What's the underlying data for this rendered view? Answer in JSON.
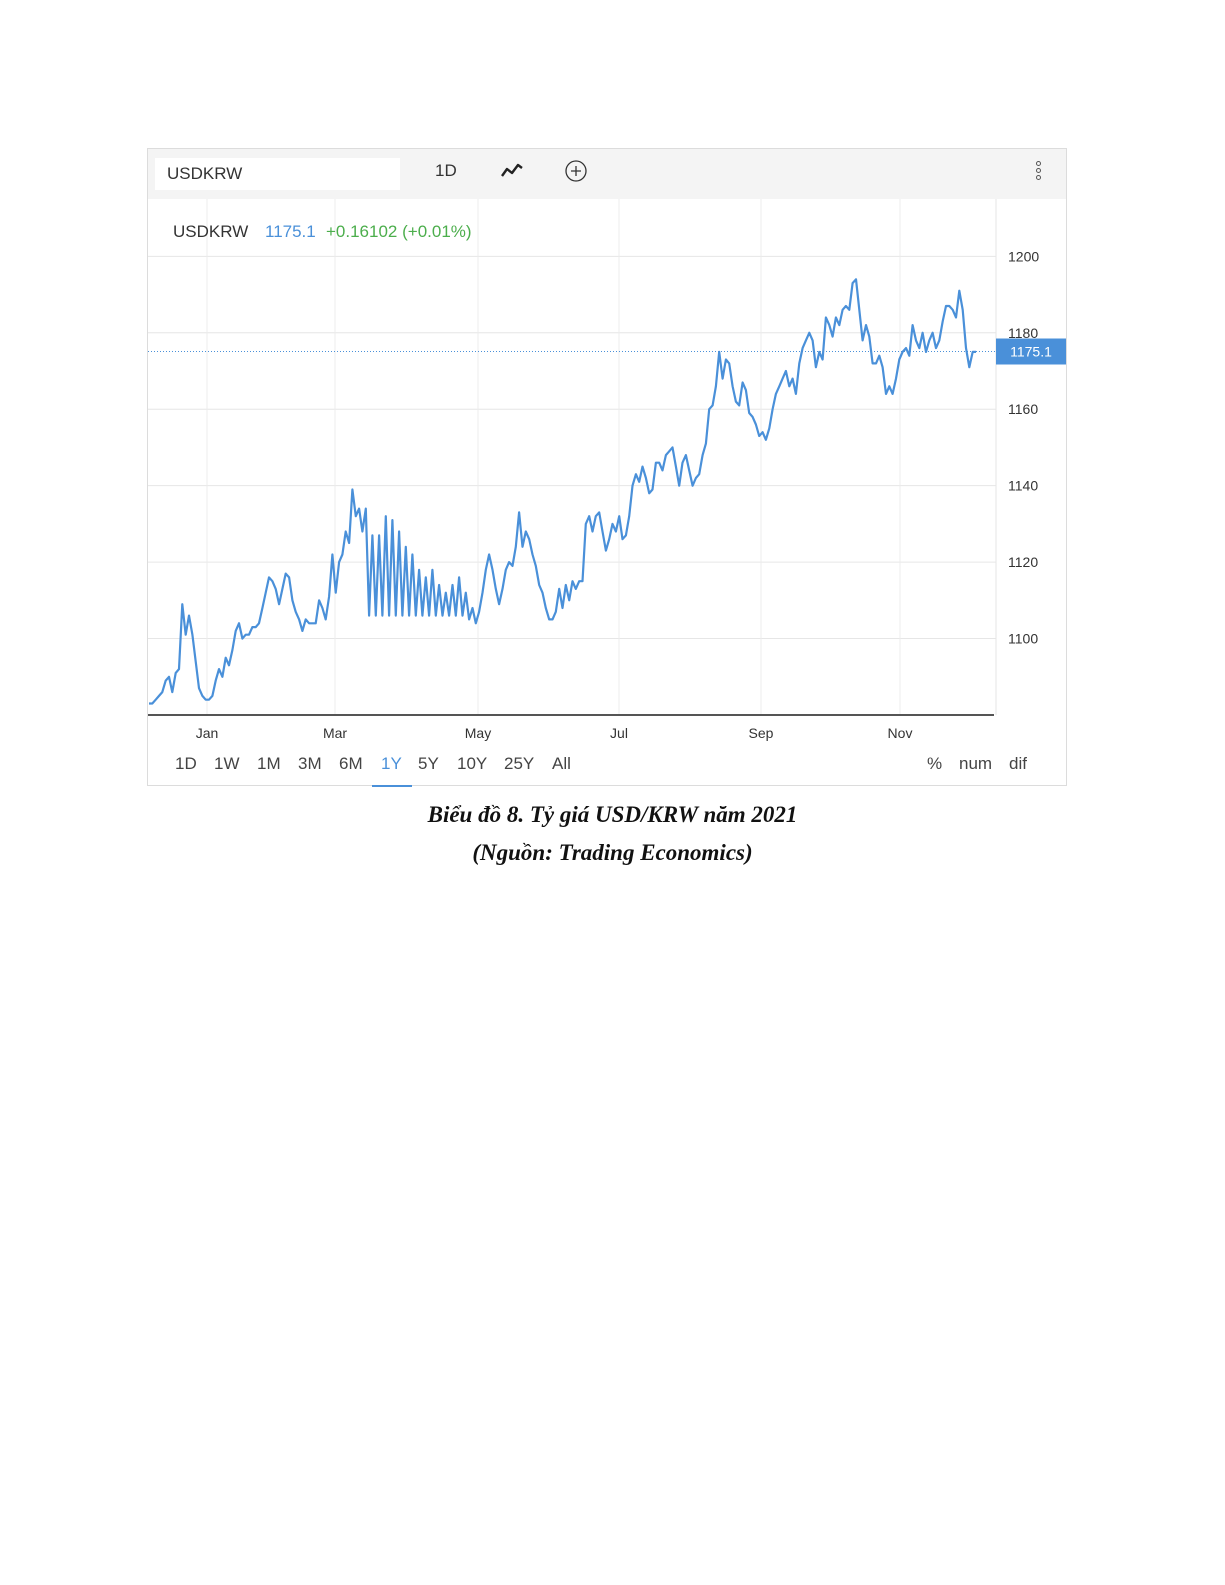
{
  "toolbar": {
    "symbol": "USDKRW",
    "interval": "1D",
    "chart_type_icon": "line-chart-icon",
    "add_icon": "plus-circle-icon",
    "menu_icon": "vertical-dots-icon"
  },
  "quote": {
    "symbol": "USDKRW",
    "price": "1175.1",
    "change": "+0.16102 (+0.01%)",
    "price_color": "#4a90d9",
    "change_color": "#4cae4c"
  },
  "last_price_badge": "1175.1",
  "range_buttons": [
    "1D",
    "1W",
    "1M",
    "3M",
    "6M",
    "1Y",
    "5Y",
    "10Y",
    "25Y",
    "All"
  ],
  "active_range": "1Y",
  "scale_buttons": [
    "%",
    "num",
    "dif"
  ],
  "caption": {
    "line1": "Biểu đồ 8. Tỷ giá USD/KRW năm 2021",
    "line2": "(Nguồn: Trading Economics)"
  },
  "chart_data": {
    "type": "line",
    "title": "",
    "xlabel": "",
    "ylabel": "",
    "x_tick_labels": [
      "Jan",
      "Mar",
      "May",
      "Jul",
      "Sep",
      "Nov"
    ],
    "y_ticks": [
      1100,
      1120,
      1140,
      1160,
      1180,
      1200
    ],
    "ylim": [
      1080,
      1215
    ],
    "grid": true,
    "last_value": 1175.1,
    "line_color": "#4a90d9",
    "series": [
      {
        "values": [
          1083,
          1083,
          1084,
          1085,
          1086,
          1089,
          1090,
          1086,
          1091,
          1092,
          1109,
          1101,
          1106,
          1101,
          1094,
          1087,
          1085,
          1084,
          1084,
          1085,
          1089,
          1092,
          1090,
          1095,
          1093,
          1097,
          1102,
          1104,
          1100,
          1101,
          1101,
          1103,
          1103,
          1104,
          1108,
          1112,
          1116,
          1115,
          1113,
          1109,
          1113,
          1117,
          1116,
          1110,
          1107,
          1105,
          1102,
          1105,
          1104,
          1104,
          1104,
          1110,
          1108,
          1105,
          1111,
          1122,
          1112,
          1120,
          1122,
          1128,
          1125,
          1139,
          1132,
          1134,
          1128,
          1134,
          1106,
          1127,
          1106,
          1127,
          1106,
          1132,
          1106,
          1131,
          1106,
          1128,
          1106,
          1124,
          1106,
          1122,
          1106,
          1118,
          1106,
          1116,
          1106,
          1118,
          1106,
          1114,
          1106,
          1112,
          1106,
          1114,
          1106,
          1116,
          1106,
          1112,
          1105,
          1108,
          1104,
          1107,
          1112,
          1118,
          1122,
          1118,
          1113,
          1109,
          1113,
          1118,
          1120,
          1119,
          1124,
          1133,
          1124,
          1128,
          1126,
          1122,
          1119,
          1114,
          1112,
          1108,
          1105,
          1105,
          1107,
          1113,
          1108,
          1114,
          1110,
          1115,
          1113,
          1115,
          1115,
          1130,
          1132,
          1128,
          1132,
          1133,
          1128,
          1123,
          1126,
          1130,
          1128,
          1132,
          1126,
          1127,
          1132,
          1140,
          1143,
          1141,
          1145,
          1142,
          1138,
          1139,
          1146,
          1146,
          1144,
          1148,
          1149,
          1150,
          1145,
          1140,
          1146,
          1148,
          1144,
          1140,
          1142,
          1143,
          1148,
          1151,
          1160,
          1161,
          1166,
          1175,
          1168,
          1173,
          1172,
          1166,
          1162,
          1161,
          1167,
          1165,
          1159,
          1158,
          1156,
          1153,
          1154,
          1152,
          1155,
          1160,
          1164,
          1166,
          1168,
          1170,
          1166,
          1168,
          1164,
          1172,
          1176,
          1178,
          1180,
          1178,
          1171,
          1175,
          1173,
          1184,
          1182,
          1179,
          1184,
          1182,
          1186,
          1187,
          1186,
          1193,
          1194,
          1186,
          1178,
          1182,
          1179,
          1172,
          1172,
          1174,
          1171,
          1164,
          1166,
          1164,
          1168,
          1173,
          1175,
          1176,
          1174,
          1182,
          1178,
          1176,
          1180,
          1175,
          1178,
          1180,
          1176,
          1178,
          1183,
          1187,
          1187,
          1186,
          1184,
          1191,
          1186,
          1176,
          1171,
          1175,
          1175
        ]
      }
    ]
  }
}
